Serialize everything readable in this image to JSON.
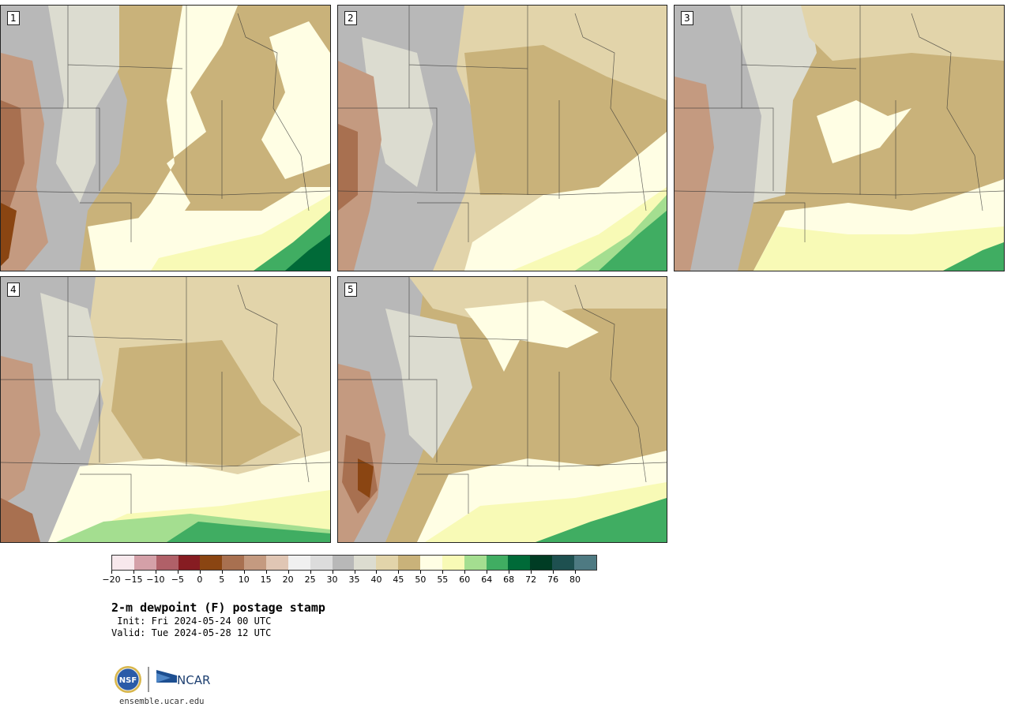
{
  "panels": [
    {
      "label": "1"
    },
    {
      "label": "2"
    },
    {
      "label": "3"
    },
    {
      "label": "4"
    },
    {
      "label": "5"
    }
  ],
  "colorbar": {
    "colors": [
      "#f7e8ec",
      "#d4a0a8",
      "#b06068",
      "#861c22",
      "#8a4512",
      "#a87050",
      "#c49a80",
      "#e0c6b4",
      "#f0f0f0",
      "#dcdcdc",
      "#b8b8b8",
      "#dcdcd0",
      "#e2d4aa",
      "#c9b27a",
      "#fffee4",
      "#f8fab6",
      "#a4de90",
      "#40ad62",
      "#006a38",
      "#003c24",
      "#1e5050",
      "#4e7a82"
    ],
    "tick_labels": [
      "−20",
      "−15",
      "−10",
      "−5",
      "0",
      "5",
      "10",
      "15",
      "20",
      "25",
      "30",
      "35",
      "40",
      "45",
      "50",
      "55",
      "60",
      "64",
      "68",
      "72",
      "76",
      "80"
    ]
  },
  "title": "2-m dewpoint (F) postage stamp",
  "init": " Init: Fri 2024-05-24 00 UTC",
  "valid": "Valid: Tue 2024-05-28 12 UTC",
  "logos": {
    "nsf_text": "NSF",
    "ncar_text": "NCAR"
  },
  "site": "ensemble.ucar.edu"
}
